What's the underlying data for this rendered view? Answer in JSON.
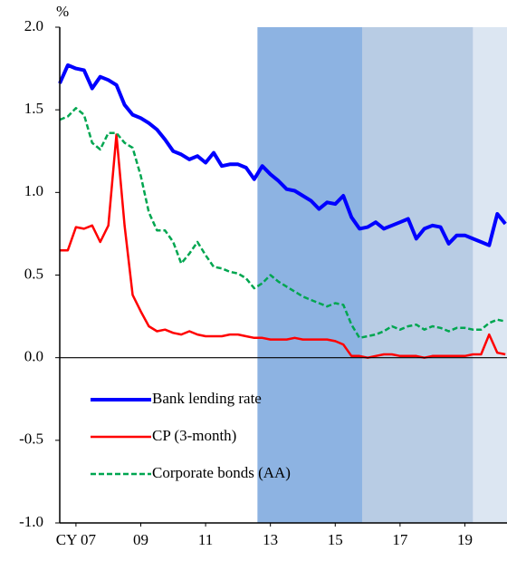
{
  "chart_data": {
    "type": "line",
    "y_unit": "%",
    "x": [
      2007,
      2007.25,
      2007.5,
      2007.75,
      2008,
      2008.25,
      2008.5,
      2008.75,
      2009,
      2009.25,
      2009.5,
      2009.75,
      2010,
      2010.25,
      2010.5,
      2010.75,
      2011,
      2011.25,
      2011.5,
      2011.75,
      2012,
      2012.25,
      2012.5,
      2012.75,
      2013,
      2013.25,
      2013.5,
      2013.75,
      2014,
      2014.25,
      2014.5,
      2014.75,
      2015,
      2015.25,
      2015.5,
      2015.75,
      2016,
      2016.25,
      2016.5,
      2016.75,
      2017,
      2017.25,
      2017.5,
      2017.75,
      2018,
      2018.25,
      2018.5,
      2018.75,
      2019,
      2019.25,
      2019.5,
      2019.75,
      2020,
      2020.25,
      2020.5,
      2020.75
    ],
    "series": [
      {
        "name": "Bank lending rate",
        "color": "#0000ff",
        "dash": "solid",
        "values": [
          1.66,
          1.77,
          1.75,
          1.74,
          1.63,
          1.7,
          1.68,
          1.65,
          1.53,
          1.47,
          1.45,
          1.42,
          1.38,
          1.32,
          1.25,
          1.23,
          1.2,
          1.22,
          1.18,
          1.24,
          1.16,
          1.17,
          1.17,
          1.15,
          1.08,
          1.16,
          1.11,
          1.07,
          1.02,
          1.01,
          0.98,
          0.95,
          0.9,
          0.94,
          0.93,
          0.98,
          0.85,
          0.78,
          0.79,
          0.82,
          0.78,
          0.8,
          0.82,
          0.84,
          0.72,
          0.78,
          0.8,
          0.79,
          0.69,
          0.74,
          0.74,
          0.72,
          0.7,
          0.68,
          0.87,
          0.81
        ]
      },
      {
        "name": "CP (3-month)",
        "color": "#ff0000",
        "dash": "solid",
        "values": [
          0.65,
          0.65,
          0.79,
          0.78,
          0.8,
          0.7,
          0.8,
          1.35,
          0.8,
          0.38,
          0.28,
          0.19,
          0.16,
          0.17,
          0.15,
          0.14,
          0.16,
          0.14,
          0.13,
          0.13,
          0.13,
          0.14,
          0.14,
          0.13,
          0.12,
          0.12,
          0.11,
          0.11,
          0.11,
          0.12,
          0.11,
          0.11,
          0.11,
          0.11,
          0.1,
          0.08,
          0.01,
          0.01,
          0.0,
          0.01,
          0.02,
          0.02,
          0.01,
          0.01,
          0.01,
          0.0,
          0.01,
          0.01,
          0.01,
          0.01,
          0.01,
          0.02,
          0.02,
          0.14,
          0.03,
          0.02
        ]
      },
      {
        "name": "Corporate bonds (AA)",
        "color": "#00a650",
        "dash": "dashed",
        "values": [
          1.44,
          1.46,
          1.51,
          1.47,
          1.3,
          1.26,
          1.36,
          1.36,
          1.3,
          1.27,
          1.1,
          0.88,
          0.77,
          0.77,
          0.7,
          0.57,
          0.63,
          0.7,
          0.62,
          0.55,
          0.54,
          0.52,
          0.51,
          0.48,
          0.42,
          0.45,
          0.5,
          0.46,
          0.43,
          0.4,
          0.37,
          0.35,
          0.33,
          0.31,
          0.33,
          0.32,
          0.2,
          0.12,
          0.13,
          0.14,
          0.16,
          0.19,
          0.17,
          0.19,
          0.2,
          0.17,
          0.19,
          0.18,
          0.16,
          0.18,
          0.18,
          0.17,
          0.17,
          0.21,
          0.23,
          0.22
        ]
      }
    ],
    "shading": [
      {
        "from": 2013.1,
        "to": 2016.33,
        "color": "#8db3e2"
      },
      {
        "from": 2016.33,
        "to": 2019.75,
        "color": "#b8cce4"
      },
      {
        "from": 2019.75,
        "to": 2020.8,
        "color": "#dce6f2"
      }
    ],
    "xlim": [
      2007,
      2020.8
    ],
    "ylim": [
      -1,
      2
    ],
    "xticks": [
      {
        "value": 2007.5,
        "label": "CY 07"
      },
      {
        "value": 2009.5,
        "label": "09"
      },
      {
        "value": 2011.5,
        "label": "11"
      },
      {
        "value": 2013.5,
        "label": "13"
      },
      {
        "value": 2015.5,
        "label": "15"
      },
      {
        "value": 2017.5,
        "label": "17"
      },
      {
        "value": 2019.5,
        "label": "19"
      }
    ],
    "yticks": [
      {
        "value": -1,
        "label": "-1.0"
      },
      -0.5,
      {
        "value": 0,
        "label": "0.0"
      },
      0.5,
      {
        "value": 1,
        "label": "1.0"
      },
      1.5,
      {
        "value": 2,
        "label": "2.0"
      }
    ],
    "legend": "lower-left",
    "zero_line": true
  }
}
